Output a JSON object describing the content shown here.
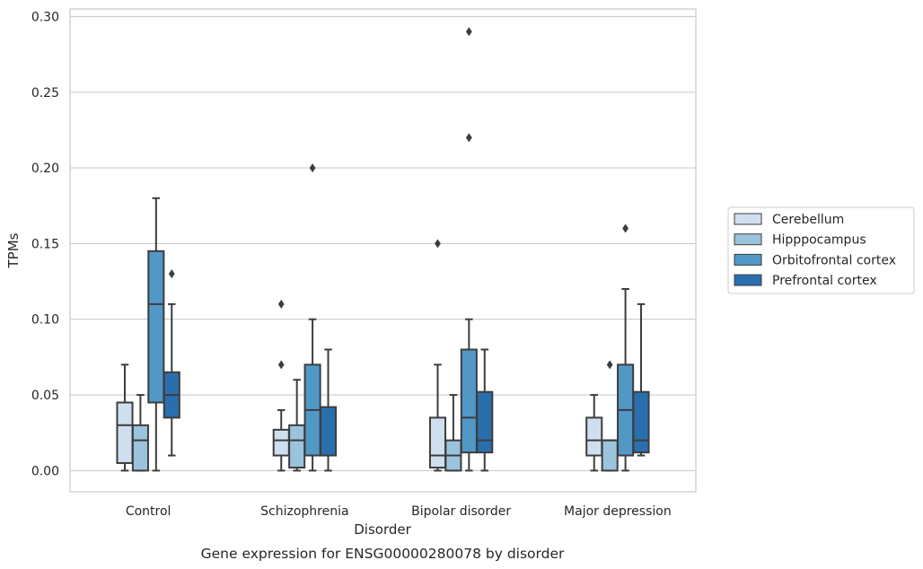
{
  "chart_data": {
    "type": "box",
    "xlabel": "Disorder",
    "ylabel": "TPMs",
    "caption": "Gene expression for ENSG00000280078 by disorder",
    "categories": [
      "Control",
      "Schizophrenia",
      "Bipolar disorder",
      "Major depression"
    ],
    "ylim": [
      -0.014,
      0.305
    ],
    "yticks": [
      0.0,
      0.05,
      0.1,
      0.15,
      0.2,
      0.25,
      0.3
    ],
    "ytick_labels": [
      "0.00",
      "0.05",
      "0.10",
      "0.15",
      "0.20",
      "0.25",
      "0.30"
    ],
    "grid": "horizontal",
    "legend_position": "right, outside plot",
    "series": [
      {
        "name": "Cerebellum",
        "color": "#cfdfef",
        "boxes": [
          {
            "whislo": 0.0,
            "q1": 0.005,
            "med": 0.03,
            "q3": 0.045,
            "whishi": 0.07,
            "fliers": []
          },
          {
            "whislo": 0.0,
            "q1": 0.01,
            "med": 0.02,
            "q3": 0.027,
            "whishi": 0.04,
            "fliers": [
              0.07,
              0.11
            ]
          },
          {
            "whislo": 0.0,
            "q1": 0.002,
            "med": 0.01,
            "q3": 0.035,
            "whishi": 0.07,
            "fliers": [
              0.15
            ]
          },
          {
            "whislo": 0.0,
            "q1": 0.01,
            "med": 0.02,
            "q3": 0.035,
            "whishi": 0.05,
            "fliers": []
          }
        ]
      },
      {
        "name": "Hipppocampus",
        "color": "#9ac3de",
        "boxes": [
          {
            "whislo": 0.0,
            "q1": 0.0,
            "med": 0.02,
            "q3": 0.03,
            "whishi": 0.05,
            "fliers": []
          },
          {
            "whislo": 0.0,
            "q1": 0.002,
            "med": 0.02,
            "q3": 0.03,
            "whishi": 0.06,
            "fliers": []
          },
          {
            "whislo": 0.0,
            "q1": 0.0,
            "med": 0.01,
            "q3": 0.02,
            "whishi": 0.05,
            "fliers": []
          },
          {
            "whislo": 0.0,
            "q1": 0.0,
            "med": 0.02,
            "q3": 0.02,
            "whishi": 0.02,
            "fliers": [
              0.07
            ]
          }
        ]
      },
      {
        "name": "Orbitofrontal cortex",
        "color": "#5298c7",
        "boxes": [
          {
            "whislo": 0.0,
            "q1": 0.045,
            "med": 0.11,
            "q3": 0.145,
            "whishi": 0.18,
            "fliers": []
          },
          {
            "whislo": 0.0,
            "q1": 0.01,
            "med": 0.04,
            "q3": 0.07,
            "whishi": 0.1,
            "fliers": [
              0.2
            ]
          },
          {
            "whislo": 0.0,
            "q1": 0.012,
            "med": 0.035,
            "q3": 0.08,
            "whishi": 0.1,
            "fliers": [
              0.22,
              0.29
            ]
          },
          {
            "whislo": 0.0,
            "q1": 0.01,
            "med": 0.04,
            "q3": 0.07,
            "whishi": 0.12,
            "fliers": [
              0.16
            ]
          }
        ]
      },
      {
        "name": "Prefrontal cortex",
        "color": "#2a6fad",
        "boxes": [
          {
            "whislo": 0.01,
            "q1": 0.035,
            "med": 0.05,
            "q3": 0.065,
            "whishi": 0.11,
            "fliers": [
              0.13
            ]
          },
          {
            "whislo": 0.0,
            "q1": 0.01,
            "med": 0.01,
            "q3": 0.042,
            "whishi": 0.08,
            "fliers": []
          },
          {
            "whislo": 0.0,
            "q1": 0.012,
            "med": 0.02,
            "q3": 0.052,
            "whishi": 0.08,
            "fliers": []
          },
          {
            "whislo": 0.01,
            "q1": 0.012,
            "med": 0.02,
            "q3": 0.052,
            "whishi": 0.11,
            "fliers": []
          }
        ]
      }
    ]
  }
}
